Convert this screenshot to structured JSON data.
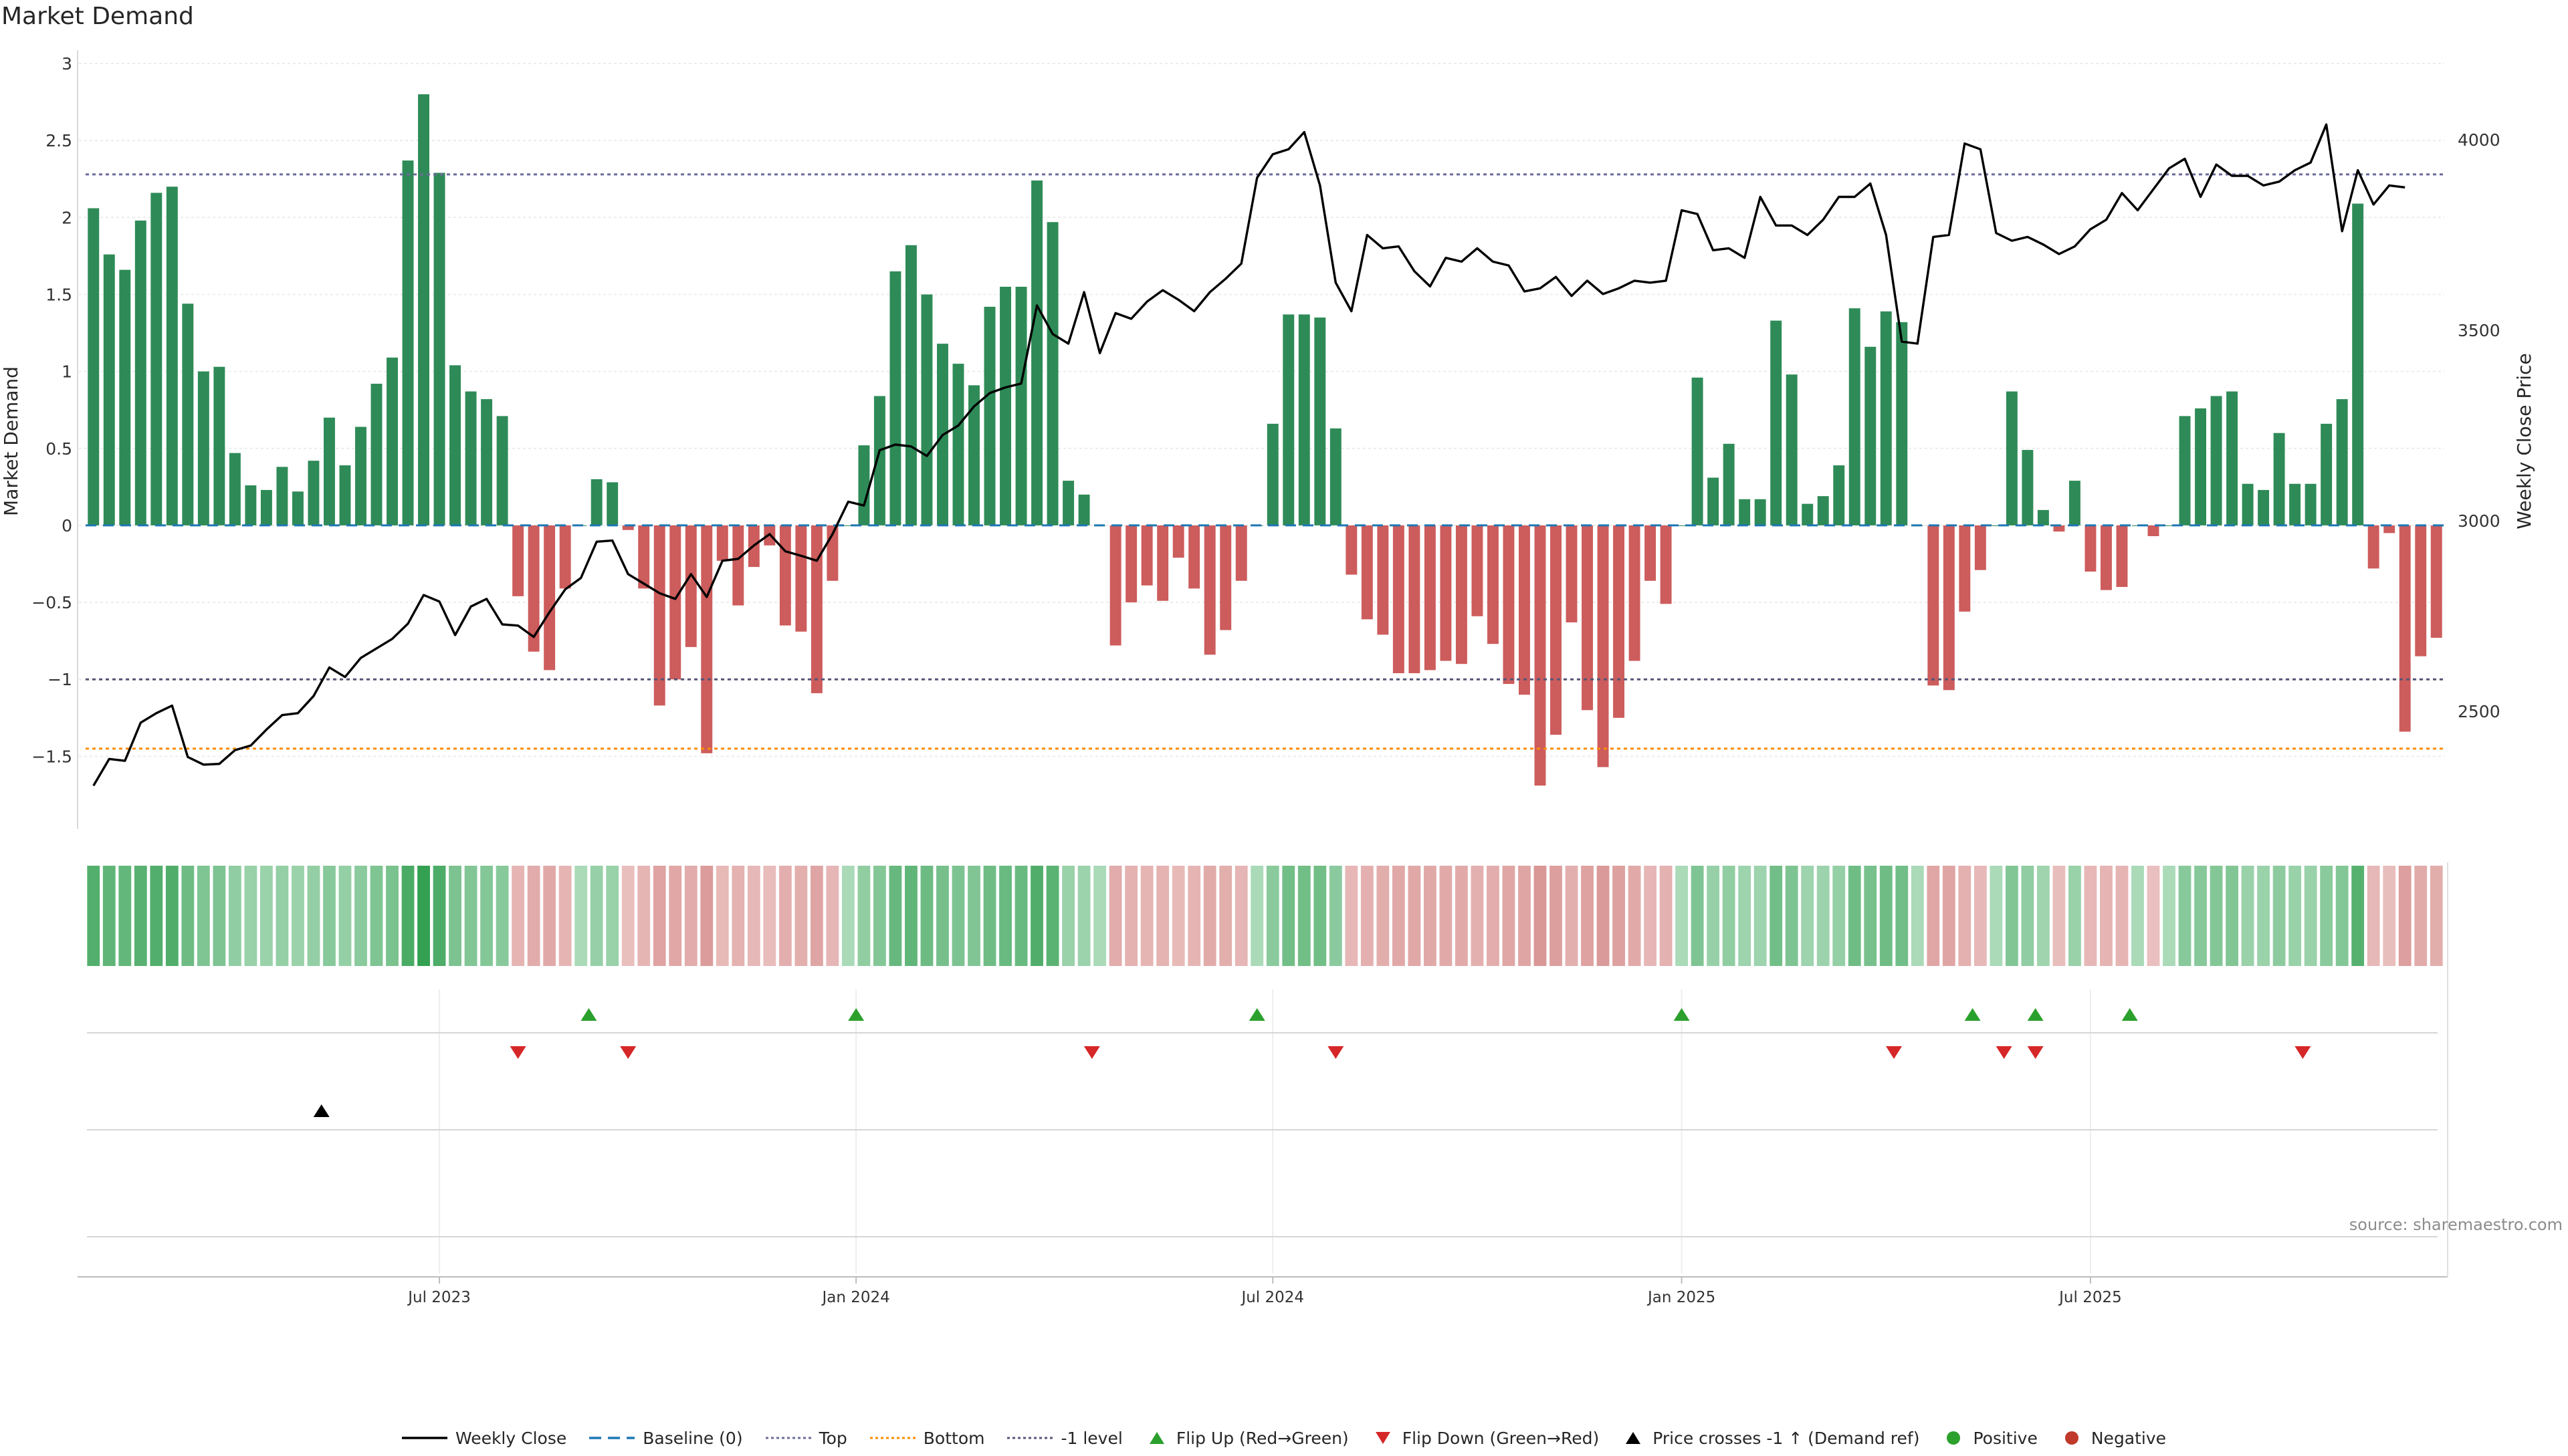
{
  "title": "Market Demand",
  "source": "source: sharemaestro.com",
  "colors": {
    "positive": "#2e8b57",
    "negative": "#cd5c5c",
    "price": "#000000",
    "baseline": "#1f77b4",
    "top": "#6b6b9a",
    "bottom": "#ff8c00",
    "minus1": "#555577",
    "flip_up": "#2ca02c",
    "flip_down": "#d62728",
    "cross": "#000000",
    "pos_dot": "#2ca02c",
    "neg_dot": "#c0392b"
  },
  "legend": [
    {
      "label": "Weekly Close",
      "icon": "line-solid"
    },
    {
      "label": "Baseline (0)",
      "icon": "line-dashed"
    },
    {
      "label": "Top",
      "icon": "line-dotted"
    },
    {
      "label": "Bottom",
      "icon": "line-dotted-orange"
    },
    {
      "label": "-1 level",
      "icon": "line-dotted-gray"
    },
    {
      "label": "Flip Up (Red→Green)",
      "icon": "triangle-up-green"
    },
    {
      "label": "Flip Down (Green→Red)",
      "icon": "triangle-down-red"
    },
    {
      "label": "Price crosses -1 ↑ (Demand ref)",
      "icon": "triangle-up-black"
    },
    {
      "label": "Positive",
      "icon": "dot-green"
    },
    {
      "label": "Negative",
      "icon": "dot-red"
    }
  ],
  "chart_data": {
    "type": "bar+line",
    "title": "Market Demand",
    "ylabel": "Market Demand",
    "y2label": "Weekly Close Price",
    "ylim": [
      -1.95,
      3.0
    ],
    "y2lim": [
      2200,
      4200
    ],
    "yticks": [
      3,
      2.5,
      2,
      1.5,
      1,
      0.5,
      0,
      -0.5,
      -1,
      -1.5
    ],
    "ytick_labels": [
      "3",
      "2.5",
      "2",
      "1.5",
      "1",
      "0.5",
      "0",
      "−0.5",
      "−1",
      "−1.5"
    ],
    "y2ticks": [
      4000,
      3500,
      3000,
      2500
    ],
    "y2tick_labels": [
      "4000",
      "3500",
      "3000",
      "2500"
    ],
    "levels": {
      "baseline": 0,
      "top": 2.28,
      "bottom": -1.45,
      "minus1": -1.0
    },
    "x_start_week_index": 0,
    "xtick_weeks": [
      22,
      48.5,
      75,
      101,
      127
    ],
    "xtick_labels": [
      "Jul 2023",
      "Jan 2024",
      "Jul 2024",
      "Jan 2025",
      "Jul 2025"
    ],
    "demand": [
      2.06,
      1.76,
      1.66,
      1.98,
      2.16,
      2.2,
      1.44,
      1.0,
      1.03,
      0.47,
      0.26,
      0.23,
      0.38,
      0.22,
      0.42,
      0.7,
      0.39,
      0.64,
      0.92,
      1.09,
      2.37,
      2.8,
      2.29,
      1.04,
      0.87,
      0.82,
      0.71,
      -0.46,
      -0.82,
      -0.94,
      -0.41,
      0.0,
      0.3,
      0.28,
      -0.03,
      -0.41,
      -1.17,
      -1.0,
      -0.79,
      -1.48,
      -0.23,
      -0.52,
      -0.27,
      -0.13,
      -0.65,
      -0.69,
      -1.09,
      -0.36,
      0.0,
      0.52,
      0.84,
      1.65,
      1.82,
      1.5,
      1.18,
      1.05,
      0.91,
      1.42,
      1.55,
      1.55,
      2.24,
      1.97,
      0.29,
      0.2,
      0.0,
      -0.78,
      -0.5,
      -0.39,
      -0.49,
      -0.21,
      -0.41,
      -0.84,
      -0.68,
      -0.36,
      0.0,
      0.66,
      1.37,
      1.37,
      1.35,
      0.63,
      -0.32,
      -0.61,
      -0.71,
      -0.96,
      -0.96,
      -0.94,
      -0.88,
      -0.9,
      -0.59,
      -0.77,
      -1.03,
      -1.1,
      -1.69,
      -1.36,
      -0.63,
      -1.2,
      -1.57,
      -1.25,
      -0.88,
      -0.36,
      -0.51,
      0.0,
      0.96,
      0.31,
      0.53,
      0.17,
      0.17,
      1.33,
      0.98,
      0.14,
      0.19,
      0.39,
      1.41,
      1.16,
      1.39,
      1.32,
      0.0,
      -1.04,
      -1.07,
      -0.56,
      -0.29,
      0.0,
      0.87,
      0.49,
      0.1,
      -0.04,
      0.29,
      -0.3,
      -0.42,
      -0.4,
      0.0,
      -0.07,
      0.0,
      0.71,
      0.76,
      0.84,
      0.87,
      0.27,
      0.23,
      0.6,
      0.27,
      0.27,
      0.66,
      0.82,
      2.09,
      -0.28,
      -0.05,
      -1.34,
      -0.85,
      -0.73
    ],
    "close": [
      2305,
      2375,
      2370,
      2470,
      2495,
      2515,
      2380,
      2360,
      2362,
      2398,
      2410,
      2452,
      2490,
      2495,
      2540,
      2615,
      2590,
      2640,
      2665,
      2690,
      2730,
      2805,
      2788,
      2700,
      2775,
      2795,
      2728,
      2725,
      2695,
      2760,
      2820,
      2850,
      2945,
      2948,
      2860,
      2835,
      2810,
      2795,
      2860,
      2800,
      2895,
      2900,
      2935,
      2965,
      2920,
      2908,
      2895,
      2965,
      3050,
      3040,
      3185,
      3200,
      3195,
      3170,
      3225,
      3250,
      3300,
      3335,
      3350,
      3360,
      3565,
      3490,
      3465,
      3600,
      3440,
      3545,
      3530,
      3575,
      3605,
      3580,
      3550,
      3600,
      3635,
      3675,
      3900,
      3962,
      3975,
      4020,
      3880,
      3625,
      3550,
      3750,
      3715,
      3720,
      3655,
      3615,
      3690,
      3680,
      3715,
      3680,
      3670,
      3602,
      3610,
      3640,
      3590,
      3630,
      3595,
      3610,
      3630,
      3625,
      3630,
      3815,
      3805,
      3710,
      3715,
      3690,
      3850,
      3775,
      3775,
      3750,
      3790,
      3850,
      3850,
      3885,
      3750,
      3470,
      3465,
      3745,
      3750,
      3990,
      3975,
      3755,
      3735,
      3745,
      3725,
      3700,
      3720,
      3765,
      3790,
      3860,
      3815,
      3870,
      3925,
      3950,
      3850,
      3935,
      3905,
      3905,
      3880,
      3890,
      3920,
      3940,
      4040,
      3760,
      3920,
      3830,
      3880,
      3875
    ],
    "heatstrip_intensity": [
      0.79,
      0.71,
      0.68,
      0.76,
      0.8,
      0.81,
      0.61,
      0.49,
      0.5,
      0.37,
      0.32,
      0.31,
      0.35,
      0.31,
      0.36,
      0.43,
      0.35,
      0.42,
      0.49,
      0.53,
      0.85,
      1.0,
      0.83,
      0.51,
      0.47,
      0.46,
      0.43,
      0.36,
      0.45,
      0.48,
      0.35,
      0.2,
      0.33,
      0.32,
      0.25,
      0.35,
      0.54,
      0.5,
      0.45,
      0.62,
      0.31,
      0.38,
      0.32,
      0.28,
      0.41,
      0.42,
      0.52,
      0.34,
      0.2,
      0.38,
      0.46,
      0.66,
      0.7,
      0.62,
      0.55,
      0.51,
      0.48,
      0.6,
      0.64,
      0.64,
      0.81,
      0.74,
      0.32,
      0.3,
      0.2,
      0.45,
      0.38,
      0.35,
      0.37,
      0.3,
      0.35,
      0.46,
      0.42,
      0.34,
      0.2,
      0.42,
      0.59,
      0.59,
      0.59,
      0.41,
      0.33,
      0.4,
      0.43,
      0.49,
      0.49,
      0.48,
      0.47,
      0.47,
      0.4,
      0.44,
      0.51,
      0.52,
      0.67,
      0.59,
      0.41,
      0.55,
      0.64,
      0.56,
      0.47,
      0.34,
      0.38,
      0.2,
      0.49,
      0.33,
      0.38,
      0.29,
      0.29,
      0.58,
      0.5,
      0.29,
      0.3,
      0.35,
      0.6,
      0.54,
      0.6,
      0.58,
      0.2,
      0.51,
      0.52,
      0.39,
      0.32,
      0.2,
      0.47,
      0.37,
      0.28,
      0.26,
      0.32,
      0.33,
      0.36,
      0.35,
      0.2,
      0.23,
      0.2,
      0.43,
      0.44,
      0.46,
      0.47,
      0.32,
      0.31,
      0.4,
      0.32,
      0.32,
      0.42,
      0.46,
      0.77,
      0.32,
      0.26,
      0.58,
      0.46,
      0.43
    ],
    "flip_up_weeks": [
      31.5,
      48.5,
      74,
      101,
      119.5,
      123.5,
      129.5
    ],
    "flip_down_weeks": [
      27,
      34,
      63.5,
      79,
      114.5,
      121.5,
      123.5,
      140.5
    ],
    "price_cross_weeks": [
      14.5
    ],
    "positive_weeks": [],
    "negative_weeks": []
  }
}
